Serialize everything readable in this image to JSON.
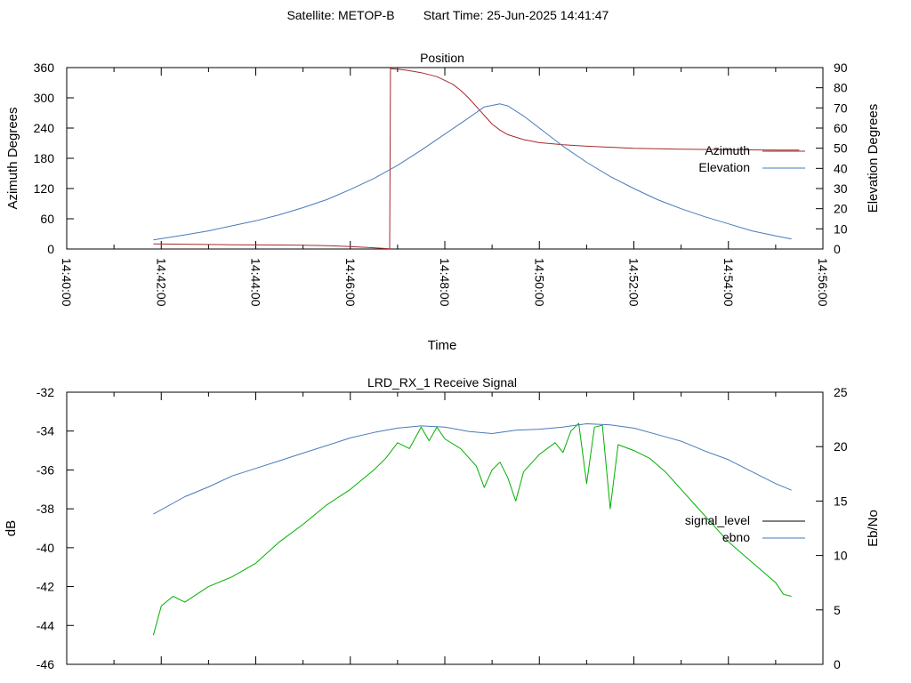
{
  "figure": {
    "satellite_label": "Satellite: METOP-B",
    "start_label": "Start Time: 25-Jun-2025 14:41:47"
  },
  "chart_data": [
    {
      "type": "line",
      "title": "Position",
      "xlabel": "Time",
      "ylabel": "Azimuth Degrees",
      "y2label": "Elevation Degrees",
      "x_unit": "minutes",
      "x_range": [
        "14:40:00",
        "14:56:00"
      ],
      "x_ticks": [
        "14:40:00",
        "14:42:00",
        "14:44:00",
        "14:46:00",
        "14:48:00",
        "14:50:00",
        "14:52:00",
        "14:54:00",
        "14:56:00"
      ],
      "ylim": [
        0,
        360
      ],
      "y_ticks": [
        "0",
        "60",
        "120",
        "180",
        "240",
        "300",
        "360"
      ],
      "y2lim": [
        0,
        90
      ],
      "y2_ticks": [
        "0",
        "10",
        "20",
        "30",
        "40",
        "50",
        "60",
        "70",
        "80",
        "90"
      ],
      "legend_position": "right",
      "grid": false,
      "series": [
        {
          "name": "Azimuth",
          "axis": "y",
          "color": "#a52a2a",
          "points": [
            [
              "14:41:50",
              10
            ],
            [
              "14:42:30",
              9.5
            ],
            [
              "14:43:30",
              8.5
            ],
            [
              "14:44:30",
              8
            ],
            [
              "14:45:00",
              7.5
            ],
            [
              "14:45:30",
              6.5
            ],
            [
              "14:46:00",
              5
            ],
            [
              "14:46:30",
              2.5
            ],
            [
              "14:46:50",
              0.5
            ],
            [
              "14:46:51",
              358
            ],
            [
              "14:47:10",
              355
            ],
            [
              "14:47:30",
              350
            ],
            [
              "14:47:50",
              342
            ],
            [
              "14:48:10",
              327
            ],
            [
              "14:48:20",
              315
            ],
            [
              "14:48:30",
              300
            ],
            [
              "14:48:45",
              274
            ],
            [
              "14:49:00",
              248
            ],
            [
              "14:49:10",
              236
            ],
            [
              "14:49:20",
              227
            ],
            [
              "14:49:40",
              217
            ],
            [
              "14:50:00",
              211
            ],
            [
              "14:50:30",
              207
            ],
            [
              "14:51:00",
              204
            ],
            [
              "14:52:00",
              200
            ],
            [
              "14:53:00",
              198
            ],
            [
              "14:54:00",
              197
            ],
            [
              "14:55:00",
              196.5
            ],
            [
              "14:55:30",
              196.5
            ]
          ]
        },
        {
          "name": "Elevation",
          "axis": "y2",
          "color": "#4a7ab8",
          "points": [
            [
              "14:41:50",
              4.5
            ],
            [
              "14:42:30",
              7
            ],
            [
              "14:43:00",
              9
            ],
            [
              "14:43:30",
              11.5
            ],
            [
              "14:44:00",
              14
            ],
            [
              "14:44:30",
              17
            ],
            [
              "14:45:00",
              20.5
            ],
            [
              "14:45:30",
              24.5
            ],
            [
              "14:46:00",
              29.5
            ],
            [
              "14:46:30",
              35
            ],
            [
              "14:47:00",
              41.5
            ],
            [
              "14:47:30",
              49
            ],
            [
              "14:48:00",
              57
            ],
            [
              "14:48:30",
              65
            ],
            [
              "14:48:50",
              70.5
            ],
            [
              "14:49:10",
              72
            ],
            [
              "14:49:20",
              71
            ],
            [
              "14:49:40",
              66
            ],
            [
              "14:50:00",
              60
            ],
            [
              "14:50:30",
              51
            ],
            [
              "14:51:00",
              43
            ],
            [
              "14:51:30",
              36
            ],
            [
              "14:52:00",
              30
            ],
            [
              "14:52:30",
              24.5
            ],
            [
              "14:53:00",
              20
            ],
            [
              "14:53:30",
              16
            ],
            [
              "14:54:00",
              12.5
            ],
            [
              "14:54:30",
              9
            ],
            [
              "14:55:00",
              6.5
            ],
            [
              "14:55:20",
              5
            ]
          ]
        }
      ]
    },
    {
      "type": "line",
      "title": "LRD_RX_1 Receive Signal",
      "ylabel": "dB",
      "y2label": "Eb/No",
      "x_range": [
        "14:40:00",
        "14:56:00"
      ],
      "ylim": [
        -46,
        -32
      ],
      "y_ticks": [
        "-46",
        "-44",
        "-42",
        "-40",
        "-38",
        "-36",
        "-34",
        "-32"
      ],
      "y2lim": [
        0,
        25
      ],
      "y2_ticks": [
        "0",
        "5",
        "10",
        "15",
        "20",
        "25"
      ],
      "legend_position": "right",
      "grid": false,
      "series": [
        {
          "name": "signal_level",
          "axis": "y",
          "legend_color": "#000000",
          "color": "#00b000",
          "points": [
            [
              "14:41:50",
              -44.5
            ],
            [
              "14:42:00",
              -43
            ],
            [
              "14:42:15",
              -42.5
            ],
            [
              "14:42:30",
              -42.8
            ],
            [
              "14:43:00",
              -42
            ],
            [
              "14:43:30",
              -41.5
            ],
            [
              "14:44:00",
              -40.8
            ],
            [
              "14:44:30",
              -39.7
            ],
            [
              "14:45:00",
              -38.8
            ],
            [
              "14:45:30",
              -37.8
            ],
            [
              "14:46:00",
              -37
            ],
            [
              "14:46:30",
              -36
            ],
            [
              "14:46:45",
              -35.4
            ],
            [
              "14:47:00",
              -34.6
            ],
            [
              "14:47:15",
              -34.9
            ],
            [
              "14:47:30",
              -33.8
            ],
            [
              "14:47:40",
              -34.5
            ],
            [
              "14:47:50",
              -33.8
            ],
            [
              "14:48:00",
              -34.4
            ],
            [
              "14:48:20",
              -34.9
            ],
            [
              "14:48:40",
              -35.8
            ],
            [
              "14:48:50",
              -36.9
            ],
            [
              "14:49:00",
              -36
            ],
            [
              "14:49:10",
              -35.6
            ],
            [
              "14:49:20",
              -36.4
            ],
            [
              "14:49:30",
              -37.6
            ],
            [
              "14:49:40",
              -36.1
            ],
            [
              "14:50:00",
              -35.2
            ],
            [
              "14:50:20",
              -34.6
            ],
            [
              "14:50:30",
              -35.1
            ],
            [
              "14:50:40",
              -34.0
            ],
            [
              "14:50:50",
              -33.6
            ],
            [
              "14:51:00",
              -36.7
            ],
            [
              "14:51:10",
              -33.8
            ],
            [
              "14:51:20",
              -33.7
            ],
            [
              "14:51:30",
              -38.0
            ],
            [
              "14:51:40",
              -34.7
            ],
            [
              "14:52:00",
              -35
            ],
            [
              "14:52:20",
              -35.4
            ],
            [
              "14:52:40",
              -36.1
            ],
            [
              "14:53:00",
              -37
            ],
            [
              "14:53:20",
              -37.9
            ],
            [
              "14:53:40",
              -38.8
            ],
            [
              "14:54:00",
              -39.7
            ],
            [
              "14:54:20",
              -40.4
            ],
            [
              "14:54:40",
              -41.1
            ],
            [
              "14:55:00",
              -41.8
            ],
            [
              "14:55:10",
              -42.4
            ],
            [
              "14:55:20",
              -42.5
            ]
          ]
        },
        {
          "name": "ebno",
          "axis": "y2",
          "color": "#4a7ab8",
          "points": [
            [
              "14:41:50",
              13.8
            ],
            [
              "14:42:30",
              15.4
            ],
            [
              "14:43:00",
              16.3
            ],
            [
              "14:43:30",
              17.3
            ],
            [
              "14:44:00",
              18
            ],
            [
              "14:44:30",
              18.7
            ],
            [
              "14:45:00",
              19.4
            ],
            [
              "14:45:30",
              20.1
            ],
            [
              "14:46:00",
              20.8
            ],
            [
              "14:46:30",
              21.3
            ],
            [
              "14:47:00",
              21.7
            ],
            [
              "14:47:30",
              21.9
            ],
            [
              "14:48:00",
              21.8
            ],
            [
              "14:48:30",
              21.4
            ],
            [
              "14:49:00",
              21.2
            ],
            [
              "14:49:30",
              21.5
            ],
            [
              "14:50:00",
              21.6
            ],
            [
              "14:50:30",
              21.8
            ],
            [
              "14:51:00",
              22.1
            ],
            [
              "14:51:30",
              22.0
            ],
            [
              "14:52:00",
              21.7
            ],
            [
              "14:52:30",
              21.1
            ],
            [
              "14:53:00",
              20.5
            ],
            [
              "14:53:30",
              19.6
            ],
            [
              "14:54:00",
              18.8
            ],
            [
              "14:54:30",
              17.7
            ],
            [
              "14:55:00",
              16.6
            ],
            [
              "14:55:20",
              16.0
            ]
          ]
        }
      ]
    }
  ]
}
